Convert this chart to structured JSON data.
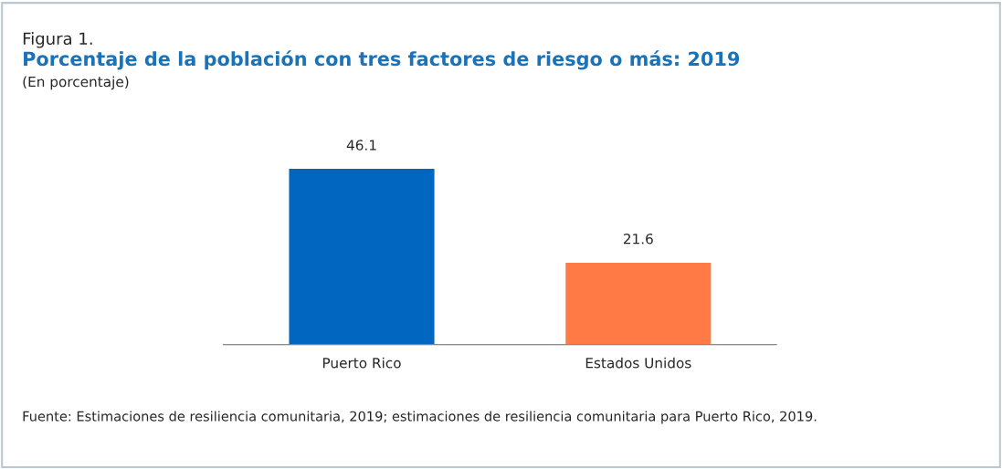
{
  "chart_data": {
    "type": "bar",
    "title": "Porcentaje de la población con tres factores de riesgo o más: 2019",
    "subtitle": "(En porcentaje)",
    "categories": [
      "Puerto Rico",
      "Estados Unidos"
    ],
    "values": [
      46.1,
      21.6
    ],
    "colors": [
      "#0066bf",
      "#ff7a45"
    ],
    "data_labels": true,
    "grid": false,
    "legend": false,
    "annotations": [
      "Figura 1.",
      "Fuente: Estimaciones de resiliencia comunitaria, 2019; estimaciones de resiliencia comunitaria para Puerto Rico, 2019."
    ]
  }
}
